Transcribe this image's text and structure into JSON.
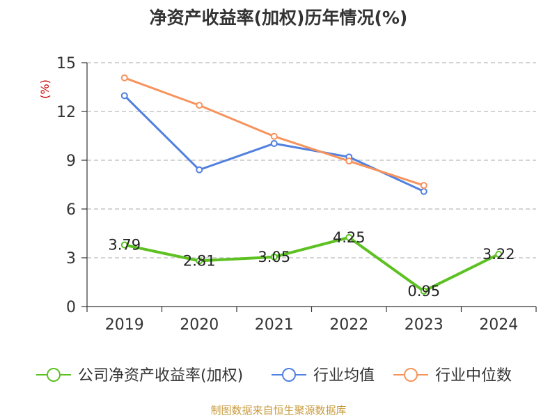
{
  "chart_data": {
    "type": "line",
    "title": "净资产收益率(加权)历年情况(%)",
    "ylabel": "(%)",
    "ylabel_color": "#cc0000",
    "categories": [
      "2019",
      "2020",
      "2021",
      "2022",
      "2023",
      "2024"
    ],
    "ylim": [
      0,
      15
    ],
    "yticks": [
      0,
      3,
      6,
      9,
      12,
      15
    ],
    "grid": true,
    "legend_position": "bottom",
    "series": [
      {
        "name": "公司净资产收益率(加权)",
        "color": "#5dc122",
        "values": [
          3.79,
          2.81,
          3.05,
          4.25,
          0.95,
          3.22
        ],
        "labels": [
          "3.79",
          "2.81",
          "3.05",
          "4.25",
          "0.95",
          "3.22"
        ]
      },
      {
        "name": "行业均值",
        "color": "#5080e0",
        "values": [
          12.97,
          8.41,
          10.03,
          9.2,
          7.08,
          null
        ]
      },
      {
        "name": "行业中位数",
        "color": "#f7935c",
        "values": [
          14.07,
          12.38,
          10.47,
          8.95,
          7.45,
          null
        ]
      }
    ],
    "source": "制图数据来自恒生聚源数据库",
    "source_color": "#c89b3c"
  }
}
